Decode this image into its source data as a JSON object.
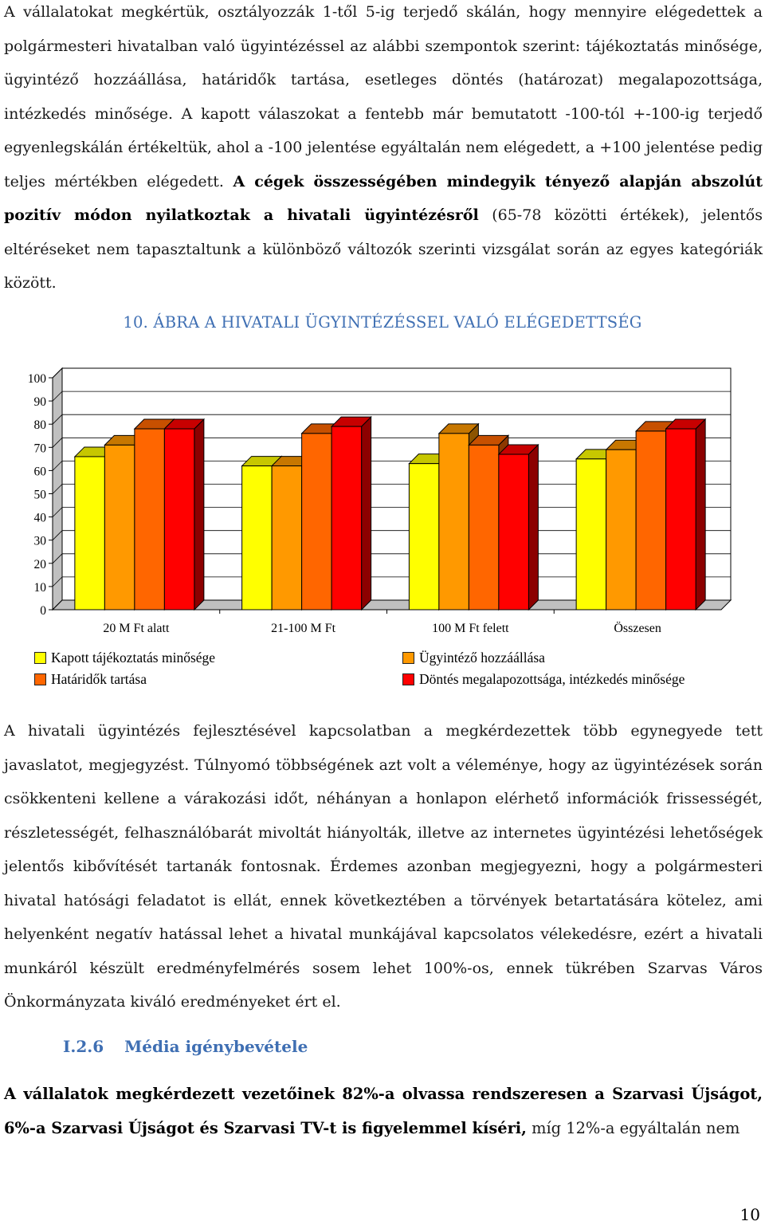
{
  "page": {
    "p1_a": "A vállalatokat megkértük, osztályozzák 1-től 5-ig terjedő skálán, hogy mennyire elégedettek a polgármesteri hivatalban való ügyintézéssel az alábbi szempontok szerint: tájékoztatás minősége, ügyintéző hozzáállása, határidők tartása, esetleges döntés (határozat) megalapozottsága, intézkedés minősége. A kapott válaszokat a fentebb már bemutatott -100-tól +-100-ig terjedő egyenlegskálán értékeltük, ahol a -100 jelentése egyáltalán nem elégedett, a +100 jelentése pedig teljes mértékben elégedett.",
    "p1_b": "A cégek összességében mindegyik tényező alapján abszolút pozitív módon nyilatkoztak a hivatali ügyintézésről",
    "p1_c": "(65-78 közötti értékek), jelentős eltéréseket nem tapasztaltunk a különböző változók szerinti vizsgálat során az egyes kategóriák között.",
    "caption": "10. ÁBRA A HIVATALI ÜGYINTÉZÉSSEL VALÓ ELÉGEDETTSÉG",
    "p2": "A hivatali ügyintézés fejlesztésével kapcsolatban a megkérdezettek több egynegyede tett javaslatot, megjegyzést. Túlnyomó többségének azt volt a véleménye, hogy az ügyintézések során csökkenteni kellene a várakozási időt, néhányan a honlapon elérhető információk frissességét, részletességét, felhasználóbarát mivoltát hiányolták, illetve az internetes ügyintézési lehetőségek jelentős kibővítését tartanák fontosnak. Érdemes azonban megjegyezni, hogy a polgármesteri hivatal hatósági feladatot is ellát, ennek következtében a törvények betartatására kötelez, ami helyenként negatív hatással lehet a hivatal munkájával kapcsolatos vélekedésre, ezért a hivatali munkáról készült eredményfelmérés sosem lehet 100%-os, ennek tükrében Szarvas Város Önkormányzata kiváló eredményeket ért el.",
    "heading_num": "I.2.6",
    "heading_text": "Média igénybevétele",
    "p3_bold": "A vállalatok megkérdezett vezetőinek 82%-a olvassa rendszeresen a Szarvasi Újságot, 6%-a Szarvasi Újságot és Szarvasi TV-t is figyelemmel kíséri,",
    "p3_rest": "míg 12%-a egyáltalán nem",
    "page_number": "10"
  },
  "chart_data": {
    "type": "bar",
    "style": "3d",
    "title": "",
    "xlabel": "",
    "ylabel": "",
    "ylim": [
      0,
      100
    ],
    "yticks": [
      "0",
      "10",
      "20",
      "30",
      "40",
      "50",
      "60",
      "70",
      "80",
      "90",
      "100"
    ],
    "categories": [
      "20 M Ft alatt",
      "21-100 M Ft",
      "100 M Ft felett",
      "Összesen"
    ],
    "series": [
      {
        "name": "Kapott tájékoztatás minősége",
        "values": [
          66,
          62,
          63,
          65
        ],
        "color": "#ffff00"
      },
      {
        "name": "Ügyintéző hozzáállása",
        "values": [
          71,
          62,
          76,
          69
        ],
        "color": "#ff9900"
      },
      {
        "name": "Határidők tartása",
        "values": [
          78,
          76,
          71,
          77
        ],
        "color": "#ff6600"
      },
      {
        "name": "Döntés megalapozottsága, intézkedés minősége",
        "values": [
          78,
          79,
          67,
          78
        ],
        "color": "#ff0000"
      }
    ],
    "grid": true,
    "legend": "bottom"
  }
}
